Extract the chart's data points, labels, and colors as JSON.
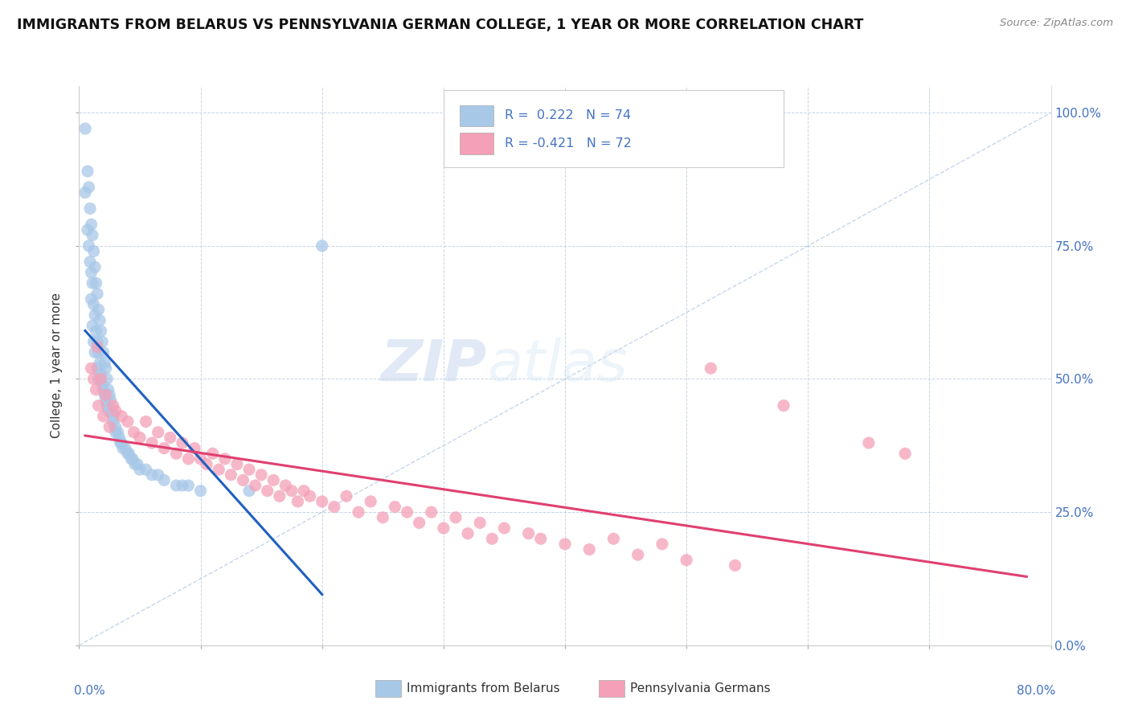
{
  "title": "IMMIGRANTS FROM BELARUS VS PENNSYLVANIA GERMAN COLLEGE, 1 YEAR OR MORE CORRELATION CHART",
  "source_text": "Source: ZipAtlas.com",
  "ylabel": "College, 1 year or more",
  "R_blue": "0.222",
  "N_blue": "74",
  "R_pink": "-0.421",
  "N_pink": "72",
  "blue_color": "#a8c8e8",
  "pink_color": "#f4a0b8",
  "blue_line_color": "#2060c0",
  "pink_line_color": "#e04070",
  "diagonal_color": "#b8cce4",
  "watermark_zip": "ZIP",
  "watermark_atlas": "atlas",
  "blue_dots_x": [
    0.005,
    0.005,
    0.007,
    0.007,
    0.008,
    0.008,
    0.009,
    0.009,
    0.01,
    0.01,
    0.01,
    0.011,
    0.011,
    0.011,
    0.012,
    0.012,
    0.012,
    0.013,
    0.013,
    0.013,
    0.014,
    0.014,
    0.015,
    0.015,
    0.015,
    0.016,
    0.016,
    0.016,
    0.017,
    0.017,
    0.018,
    0.018,
    0.019,
    0.019,
    0.02,
    0.02,
    0.021,
    0.021,
    0.022,
    0.022,
    0.023,
    0.023,
    0.024,
    0.024,
    0.025,
    0.026,
    0.027,
    0.028,
    0.028,
    0.03,
    0.03,
    0.032,
    0.033,
    0.034,
    0.035,
    0.036,
    0.038,
    0.04,
    0.041,
    0.043,
    0.044,
    0.046,
    0.048,
    0.05,
    0.055,
    0.06,
    0.065,
    0.07,
    0.08,
    0.085,
    0.09,
    0.1,
    0.14,
    0.2
  ],
  "blue_dots_y": [
    0.97,
    0.85,
    0.89,
    0.78,
    0.86,
    0.75,
    0.82,
    0.72,
    0.79,
    0.7,
    0.65,
    0.77,
    0.68,
    0.6,
    0.74,
    0.64,
    0.57,
    0.71,
    0.62,
    0.55,
    0.68,
    0.59,
    0.66,
    0.57,
    0.52,
    0.63,
    0.55,
    0.5,
    0.61,
    0.53,
    0.59,
    0.51,
    0.57,
    0.49,
    0.55,
    0.48,
    0.53,
    0.47,
    0.52,
    0.46,
    0.5,
    0.45,
    0.48,
    0.44,
    0.47,
    0.46,
    0.44,
    0.43,
    0.42,
    0.41,
    0.4,
    0.4,
    0.39,
    0.38,
    0.38,
    0.37,
    0.37,
    0.36,
    0.36,
    0.35,
    0.35,
    0.34,
    0.34,
    0.33,
    0.33,
    0.32,
    0.32,
    0.31,
    0.3,
    0.3,
    0.3,
    0.29,
    0.29,
    0.75
  ],
  "pink_dots_x": [
    0.01,
    0.012,
    0.014,
    0.015,
    0.016,
    0.018,
    0.02,
    0.022,
    0.025,
    0.028,
    0.03,
    0.035,
    0.04,
    0.045,
    0.05,
    0.055,
    0.06,
    0.065,
    0.07,
    0.075,
    0.08,
    0.085,
    0.09,
    0.095,
    0.1,
    0.105,
    0.11,
    0.115,
    0.12,
    0.125,
    0.13,
    0.135,
    0.14,
    0.145,
    0.15,
    0.155,
    0.16,
    0.165,
    0.17,
    0.175,
    0.18,
    0.185,
    0.19,
    0.2,
    0.21,
    0.22,
    0.23,
    0.24,
    0.25,
    0.26,
    0.27,
    0.28,
    0.29,
    0.3,
    0.31,
    0.32,
    0.33,
    0.34,
    0.35,
    0.37,
    0.38,
    0.4,
    0.42,
    0.44,
    0.46,
    0.48,
    0.5,
    0.52,
    0.54,
    0.58,
    0.65,
    0.68
  ],
  "pink_dots_y": [
    0.52,
    0.5,
    0.48,
    0.56,
    0.45,
    0.5,
    0.43,
    0.47,
    0.41,
    0.45,
    0.44,
    0.43,
    0.42,
    0.4,
    0.39,
    0.42,
    0.38,
    0.4,
    0.37,
    0.39,
    0.36,
    0.38,
    0.35,
    0.37,
    0.35,
    0.34,
    0.36,
    0.33,
    0.35,
    0.32,
    0.34,
    0.31,
    0.33,
    0.3,
    0.32,
    0.29,
    0.31,
    0.28,
    0.3,
    0.29,
    0.27,
    0.29,
    0.28,
    0.27,
    0.26,
    0.28,
    0.25,
    0.27,
    0.24,
    0.26,
    0.25,
    0.23,
    0.25,
    0.22,
    0.24,
    0.21,
    0.23,
    0.2,
    0.22,
    0.21,
    0.2,
    0.19,
    0.18,
    0.2,
    0.17,
    0.19,
    0.16,
    0.52,
    0.15,
    0.45,
    0.38,
    0.36
  ],
  "xlim": [
    0.0,
    0.8
  ],
  "ylim": [
    0.0,
    1.05
  ],
  "xticks": [
    0.0,
    0.1,
    0.2,
    0.3,
    0.4,
    0.5,
    0.6,
    0.7,
    0.8
  ],
  "yticks": [
    0.0,
    0.25,
    0.5,
    0.75,
    1.0
  ],
  "right_ytick_labels": [
    "0.0%",
    "25.0%",
    "50.0%",
    "75.0%",
    "100.0%"
  ]
}
